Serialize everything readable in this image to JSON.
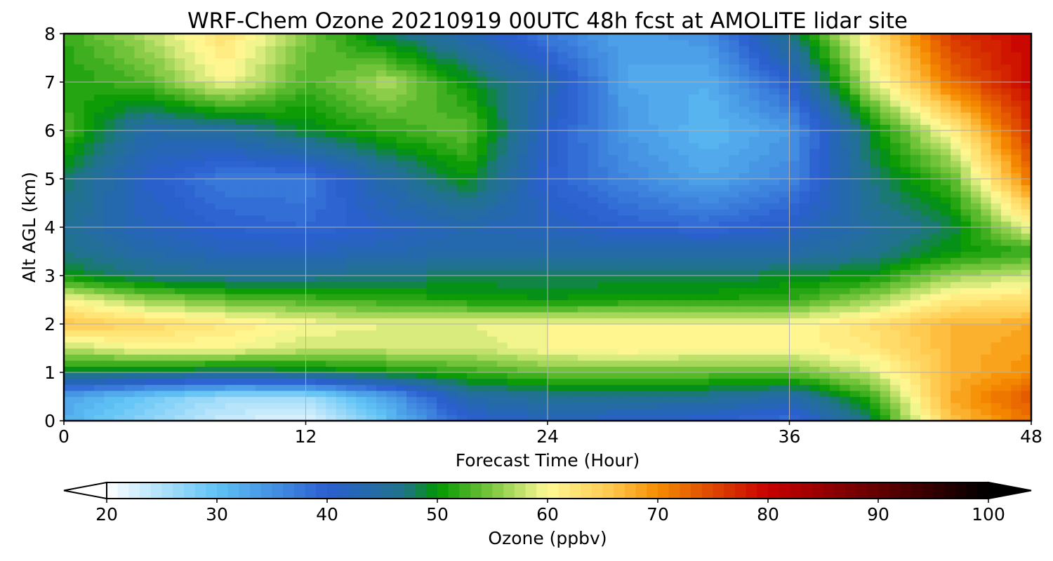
{
  "chart_data": {
    "type": "heatmap",
    "title": "WRF-Chem Ozone  20210919 00UTC 48h fcst at AMOLITE lidar site",
    "xlabel": "Forecast Time (Hour)",
    "ylabel": "Alt AGL (km)",
    "xlim": [
      0,
      48
    ],
    "ylim": [
      0,
      8
    ],
    "x_ticks": [
      0,
      12,
      24,
      36,
      48
    ],
    "x_tick_labels": [
      "0",
      "12",
      "24",
      "36",
      "48"
    ],
    "y_ticks": [
      0,
      1,
      2,
      3,
      4,
      5,
      6,
      7,
      8
    ],
    "y_tick_labels": [
      "0",
      "1",
      "2",
      "3",
      "4",
      "5",
      "6",
      "7",
      "8"
    ],
    "grid": true,
    "value_units": "ppbv",
    "x": [
      0,
      4,
      8,
      12,
      16,
      20,
      24,
      28,
      32,
      36,
      40,
      44,
      48
    ],
    "y": [
      0,
      0.5,
      1,
      1.5,
      2,
      2.5,
      3,
      3.5,
      4,
      5,
      6,
      7,
      8
    ],
    "z": [
      [
        32,
        27,
        23,
        22,
        30,
        40,
        42,
        41,
        40,
        38,
        48,
        66,
        72
      ],
      [
        33,
        29,
        26,
        26,
        33,
        44,
        46,
        46,
        46,
        44,
        52,
        68,
        74
      ],
      [
        49,
        48,
        47,
        48,
        50,
        52,
        54,
        54,
        54,
        54,
        58,
        67,
        70
      ],
      [
        57,
        60,
        60,
        58,
        58,
        58,
        60,
        61,
        60,
        60,
        62,
        67,
        69
      ],
      [
        66,
        64,
        62,
        60,
        59,
        59,
        60,
        60,
        60,
        60,
        63,
        67,
        68
      ],
      [
        60,
        56,
        54,
        53,
        52,
        51,
        50,
        51,
        51,
        52,
        56,
        62,
        63
      ],
      [
        50,
        47,
        46,
        46,
        47,
        48,
        48,
        48,
        48,
        49,
        50,
        56,
        58
      ],
      [
        47,
        44,
        42,
        42,
        43,
        44,
        44,
        44,
        44,
        44,
        46,
        50,
        52
      ],
      [
        46,
        42,
        40,
        39,
        41,
        43,
        42,
        40,
        39,
        41,
        45,
        48,
        60
      ],
      [
        48,
        41,
        37,
        37,
        44,
        50,
        40,
        36,
        33,
        36,
        47,
        53,
        72
      ],
      [
        53,
        44,
        45,
        49,
        52,
        54,
        41,
        34,
        31,
        34,
        49,
        61,
        77
      ],
      [
        51,
        53,
        60,
        53,
        57,
        50,
        43,
        33,
        32,
        40,
        58,
        72,
        80
      ],
      [
        52,
        57,
        63,
        55,
        48,
        43,
        37,
        33,
        35,
        47,
        62,
        76,
        80
      ]
    ],
    "colorbar": {
      "label": "Ozone  (ppbv)",
      "min": 20,
      "max": 100,
      "ticks": [
        20,
        30,
        40,
        50,
        60,
        70,
        80,
        90,
        100
      ],
      "tick_labels": [
        "20",
        "30",
        "40",
        "50",
        "60",
        "70",
        "80",
        "90",
        "100"
      ],
      "extend": "both",
      "levels": 80,
      "stops": [
        {
          "value": 20,
          "color": "#ffffff"
        },
        {
          "value": 30,
          "color": "#5fc3f5"
        },
        {
          "value": 40,
          "color": "#2a5fd0"
        },
        {
          "value": 47,
          "color": "#20738a"
        },
        {
          "value": 50,
          "color": "#009600"
        },
        {
          "value": 55,
          "color": "#7ec840"
        },
        {
          "value": 60,
          "color": "#fffa96"
        },
        {
          "value": 66,
          "color": "#ffc64a"
        },
        {
          "value": 70,
          "color": "#f58c00"
        },
        {
          "value": 80,
          "color": "#c80000"
        },
        {
          "value": 90,
          "color": "#640000"
        },
        {
          "value": 100,
          "color": "#000000"
        }
      ]
    }
  }
}
